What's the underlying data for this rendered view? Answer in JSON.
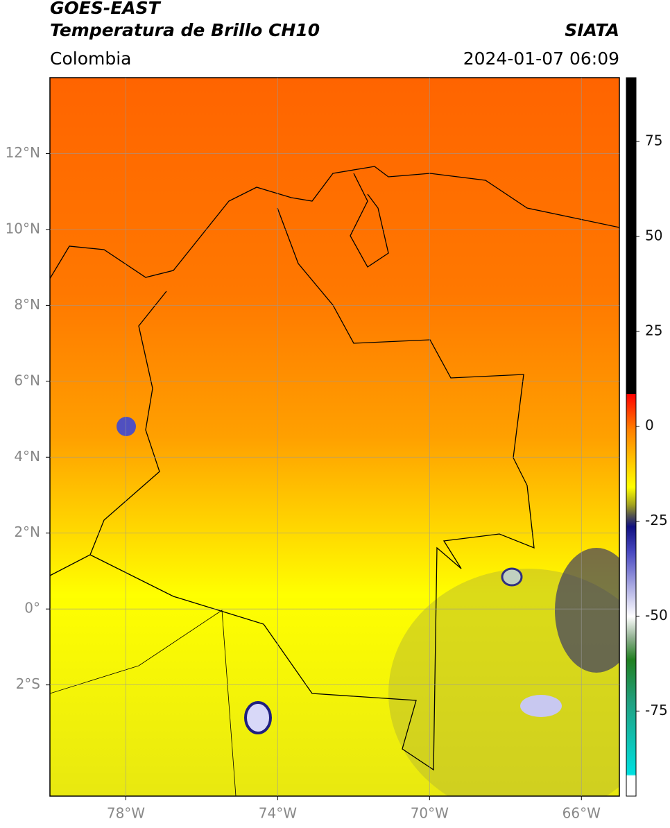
{
  "header": {
    "title": "GOES-EAST",
    "subtitle": "Temperatura de Brillo CH10",
    "source": "SIATA",
    "region": "Colombia",
    "datetime": "2024-01-07 06:09"
  },
  "map": {
    "xlim": [
      -80,
      -65
    ],
    "ylim": [
      -4.93,
      14
    ],
    "grid": true,
    "xticks": [
      {
        "value": -78,
        "label": "78°W"
      },
      {
        "value": -74,
        "label": "74°W"
      },
      {
        "value": -70,
        "label": "70°W"
      },
      {
        "value": -66,
        "label": "66°W"
      }
    ],
    "yticks": [
      {
        "value": 12,
        "label": "12°N"
      },
      {
        "value": 10,
        "label": "10°N"
      },
      {
        "value": 8,
        "label": "8°N"
      },
      {
        "value": 6,
        "label": "6°N"
      },
      {
        "value": 4,
        "label": "4°N"
      },
      {
        "value": 2,
        "label": "2°N"
      },
      {
        "value": 0,
        "label": "0°"
      },
      {
        "value": -2,
        "label": "2°S"
      }
    ]
  },
  "colorbar": {
    "lim": [
      -97.4,
      91.8
    ],
    "ticks": [
      75,
      50,
      25,
      0,
      -25,
      -50,
      -75
    ]
  }
}
